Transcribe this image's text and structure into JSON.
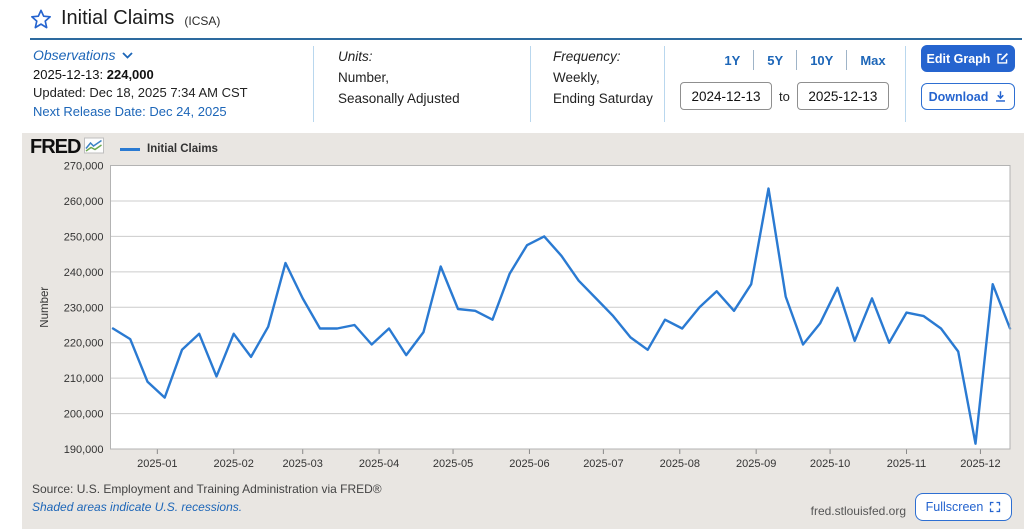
{
  "header": {
    "title": "Initial Claims",
    "ticker": "(ICSA)"
  },
  "meta": {
    "observations_label": "Observations",
    "latest_label": "2025-12-13:",
    "latest_value": "224,000",
    "updated": "Updated: Dec 18, 2025 7:34 AM CST",
    "next_release": "Next Release Date: Dec 24, 2025",
    "units_label": "Units:",
    "units_line1": "Number,",
    "units_line2": "Seasonally Adjusted",
    "frequency_label": "Frequency:",
    "frequency_line1": "Weekly,",
    "frequency_line2": "Ending Saturday",
    "ranges": [
      "1Y",
      "5Y",
      "10Y",
      "Max"
    ],
    "date_from": "2024-12-13",
    "to_label": "to",
    "date_to": "2025-12-13",
    "edit_graph_label": "Edit Graph",
    "download_label": "Download"
  },
  "chart": {
    "brand": "FRED",
    "legend_label": "Initial Claims",
    "line_color": "#2a7ad2",
    "panel_bg": "#e9e6e2",
    "grid_color": "#cccccc",
    "accent_blue": "#1d66b8"
  },
  "chart_data": {
    "type": "line",
    "title": "Initial Claims (ICSA)",
    "xlabel": "",
    "ylabel": "Number",
    "ylim": [
      190000,
      270000
    ],
    "y_tick_step": 10000,
    "y_ticks": [
      "270,000",
      "260,000",
      "250,000",
      "240,000",
      "230,000",
      "220,000",
      "210,000",
      "200,000",
      "190,000"
    ],
    "x_range": [
      "2024-12-13",
      "2025-12-13"
    ],
    "x_ticks": [
      "2025-01",
      "2025-02",
      "2025-03",
      "2025-04",
      "2025-05",
      "2025-06",
      "2025-07",
      "2025-08",
      "2025-09",
      "2025-10",
      "2025-11",
      "2025-12"
    ],
    "grid": "horizontal",
    "legend_position": "top-left",
    "series": [
      {
        "name": "Initial Claims",
        "color": "#2a7ad2",
        "x": [
          "2024-12-14",
          "2024-12-21",
          "2024-12-28",
          "2025-01-04",
          "2025-01-11",
          "2025-01-18",
          "2025-01-25",
          "2025-02-01",
          "2025-02-08",
          "2025-02-15",
          "2025-02-22",
          "2025-03-01",
          "2025-03-08",
          "2025-03-15",
          "2025-03-22",
          "2025-03-29",
          "2025-04-05",
          "2025-04-12",
          "2025-04-19",
          "2025-04-26",
          "2025-05-03",
          "2025-05-10",
          "2025-05-17",
          "2025-05-24",
          "2025-05-31",
          "2025-06-07",
          "2025-06-14",
          "2025-06-21",
          "2025-06-28",
          "2025-07-05",
          "2025-07-12",
          "2025-07-19",
          "2025-07-26",
          "2025-08-02",
          "2025-08-09",
          "2025-08-16",
          "2025-08-23",
          "2025-08-30",
          "2025-09-06",
          "2025-09-13",
          "2025-09-20",
          "2025-09-27",
          "2025-10-04",
          "2025-10-11",
          "2025-10-18",
          "2025-10-25",
          "2025-11-01",
          "2025-11-08",
          "2025-11-15",
          "2025-11-22",
          "2025-11-29",
          "2025-12-06",
          "2025-12-13"
        ],
        "values": [
          224000,
          221000,
          209000,
          204500,
          218000,
          222500,
          210500,
          222500,
          216000,
          224500,
          242500,
          232500,
          224000,
          224000,
          225000,
          219500,
          224000,
          216500,
          223000,
          241500,
          229500,
          229000,
          226500,
          239500,
          247500,
          250000,
          244500,
          237500,
          232500,
          227500,
          221500,
          218000,
          226500,
          224000,
          230000,
          234500,
          229000,
          236500,
          263500,
          233000,
          219500,
          225500,
          235500,
          220500,
          232500,
          220000,
          228500,
          227500,
          224000,
          217500,
          191500,
          236500,
          224000
        ]
      }
    ]
  },
  "footer": {
    "source": "Source: U.S. Employment and Training Administration via FRED®",
    "note": "Shaded areas indicate U.S. recessions.",
    "site": "fred.stlouisfed.org",
    "fullscreen_label": "Fullscreen"
  }
}
